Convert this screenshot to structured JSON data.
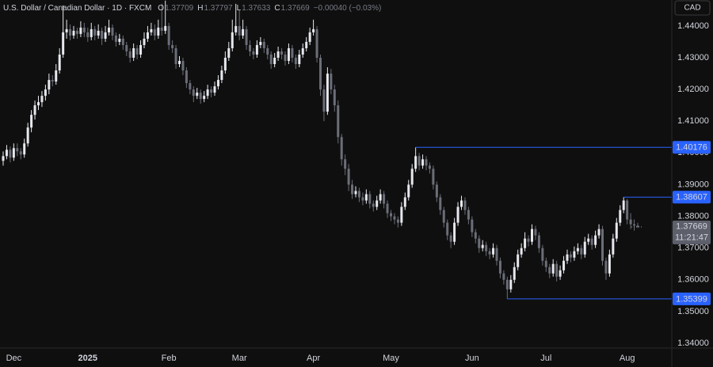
{
  "chart_data": {
    "type": "candlestick",
    "title": "U.S. Dollar / Canadian Dollar · 1D · FXCM",
    "ohlc_labels": [
      "O",
      "H",
      "L",
      "C"
    ],
    "change": "−0.00040 (−0.03%)",
    "currency": "CAD",
    "countdown": "11:21:47",
    "up_color": "#e6e8ee",
    "down_color": "#6b6e78",
    "level_color": "#2962ff",
    "price_tag_color": "#5d606b",
    "grid": false,
    "ylim": [
      1.3385,
      1.4482
    ],
    "yticks": [
      {
        "value": 1.44,
        "label": "1.44000"
      },
      {
        "value": 1.43,
        "label": "1.43000"
      },
      {
        "value": 1.42,
        "label": "1.42000"
      },
      {
        "value": 1.41,
        "label": "1.41000"
      },
      {
        "value": 1.4,
        "label": "1.40000"
      },
      {
        "value": 1.39,
        "label": "1.39000"
      },
      {
        "value": 1.38,
        "label": "1.38000"
      },
      {
        "value": 1.37,
        "label": "1.37000"
      },
      {
        "value": 1.36,
        "label": "1.36000"
      },
      {
        "value": 1.35,
        "label": "1.35000"
      },
      {
        "value": 1.34,
        "label": "1.34000"
      }
    ],
    "levels": [
      1.40176,
      1.38607,
      1.35399
    ],
    "categories": [
      null,
      null,
      null,
      "Dec",
      null,
      null,
      null,
      null,
      null,
      null,
      null,
      null,
      null,
      null,
      null,
      null,
      null,
      null,
      null,
      null,
      null,
      null,
      null,
      null,
      "2025",
      null,
      null,
      null,
      null,
      null,
      null,
      null,
      null,
      null,
      null,
      null,
      null,
      null,
      null,
      null,
      null,
      null,
      null,
      null,
      null,
      null,
      null,
      "Feb",
      null,
      null,
      null,
      null,
      null,
      null,
      null,
      null,
      null,
      null,
      null,
      null,
      null,
      null,
      null,
      null,
      null,
      null,
      null,
      "Mar",
      null,
      null,
      null,
      null,
      null,
      null,
      null,
      null,
      null,
      null,
      null,
      null,
      null,
      null,
      null,
      null,
      null,
      null,
      null,
      null,
      "Apr",
      null,
      null,
      null,
      null,
      null,
      null,
      null,
      null,
      null,
      null,
      null,
      null,
      null,
      null,
      null,
      null,
      null,
      null,
      null,
      null,
      null,
      "May",
      null,
      null,
      null,
      null,
      null,
      null,
      null,
      null,
      null,
      null,
      null,
      null,
      null,
      null,
      null,
      null,
      null,
      null,
      null,
      null,
      null,
      null,
      "Jun",
      null,
      null,
      null,
      null,
      null,
      null,
      null,
      null,
      null,
      null,
      null,
      null,
      null,
      null,
      null,
      null,
      null,
      null,
      null,
      null,
      "Jul",
      null,
      null,
      null,
      null,
      null,
      null,
      null,
      null,
      null,
      null,
      null,
      null,
      null,
      null,
      null,
      null,
      null,
      null,
      null,
      null,
      null,
      null,
      "Aug",
      null,
      null,
      null
    ],
    "ohlc": [
      [
        1.3975,
        1.4005,
        1.396,
        1.399
      ],
      [
        1.399,
        1.4025,
        1.398,
        1.401
      ],
      [
        1.401,
        1.402,
        1.397,
        1.3985
      ],
      [
        1.3985,
        1.403,
        1.3975,
        1.4015
      ],
      [
        1.4015,
        1.403,
        1.399,
        1.4005
      ],
      [
        1.4005,
        1.4015,
        1.398,
        1.3995
      ],
      [
        1.3995,
        1.4045,
        1.3985,
        1.403
      ],
      [
        1.403,
        1.4095,
        1.402,
        1.408
      ],
      [
        1.408,
        1.4135,
        1.4065,
        1.412
      ],
      [
        1.412,
        1.4165,
        1.4105,
        1.415
      ],
      [
        1.415,
        1.418,
        1.4135,
        1.416
      ],
      [
        1.416,
        1.4195,
        1.4145,
        1.418
      ],
      [
        1.418,
        1.4215,
        1.4165,
        1.42
      ],
      [
        1.42,
        1.425,
        1.4185,
        1.423
      ],
      [
        1.423,
        1.4245,
        1.421,
        1.4225
      ],
      [
        1.4225,
        1.428,
        1.4215,
        1.426
      ],
      [
        1.426,
        1.433,
        1.425,
        1.431
      ],
      [
        1.431,
        1.4465,
        1.43,
        1.438
      ],
      [
        1.438,
        1.442,
        1.436,
        1.439
      ],
      [
        1.439,
        1.4405,
        1.4355,
        1.437
      ],
      [
        1.437,
        1.44,
        1.436,
        1.4385
      ],
      [
        1.4385,
        1.4395,
        1.436,
        1.4375
      ],
      [
        1.4375,
        1.4415,
        1.4365,
        1.4395
      ],
      [
        1.4395,
        1.441,
        1.4365,
        1.438
      ],
      [
        1.438,
        1.4395,
        1.435,
        1.4365
      ],
      [
        1.4365,
        1.441,
        1.4355,
        1.439
      ],
      [
        1.439,
        1.44,
        1.4355,
        1.437
      ],
      [
        1.437,
        1.4405,
        1.436,
        1.4385
      ],
      [
        1.4385,
        1.4395,
        1.434,
        1.436
      ],
      [
        1.436,
        1.44,
        1.435,
        1.438
      ],
      [
        1.438,
        1.442,
        1.437,
        1.4395
      ],
      [
        1.4395,
        1.4405,
        1.4355,
        1.437
      ],
      [
        1.437,
        1.438,
        1.4335,
        1.435
      ],
      [
        1.435,
        1.4375,
        1.434,
        1.436
      ],
      [
        1.436,
        1.437,
        1.4325,
        1.434
      ],
      [
        1.434,
        1.435,
        1.4305,
        1.432
      ],
      [
        1.432,
        1.433,
        1.4285,
        1.43
      ],
      [
        1.43,
        1.4345,
        1.429,
        1.433
      ],
      [
        1.433,
        1.434,
        1.4295,
        1.431
      ],
      [
        1.431,
        1.4355,
        1.43,
        1.434
      ],
      [
        1.434,
        1.438,
        1.433,
        1.436
      ],
      [
        1.436,
        1.44,
        1.435,
        1.438
      ],
      [
        1.438,
        1.441,
        1.437,
        1.439
      ],
      [
        1.439,
        1.4405,
        1.4355,
        1.437
      ],
      [
        1.437,
        1.442,
        1.436,
        1.4395
      ],
      [
        1.4395,
        1.447,
        1.437,
        1.4385
      ],
      [
        1.4385,
        1.448,
        1.4375,
        1.44
      ],
      [
        1.44,
        1.441,
        1.4325,
        1.434
      ],
      [
        1.434,
        1.4355,
        1.4315,
        1.433
      ],
      [
        1.433,
        1.434,
        1.4265,
        1.428
      ],
      [
        1.428,
        1.4305,
        1.427,
        1.429
      ],
      [
        1.429,
        1.43,
        1.4245,
        1.426
      ],
      [
        1.426,
        1.427,
        1.4205,
        1.422
      ],
      [
        1.422,
        1.423,
        1.4185,
        1.42
      ],
      [
        1.42,
        1.421,
        1.416,
        1.418
      ],
      [
        1.418,
        1.4205,
        1.417,
        1.419
      ],
      [
        1.419,
        1.42,
        1.4155,
        1.417
      ],
      [
        1.417,
        1.4195,
        1.416,
        1.418
      ],
      [
        1.418,
        1.4215,
        1.417,
        1.42
      ],
      [
        1.42,
        1.421,
        1.4175,
        1.419
      ],
      [
        1.419,
        1.4225,
        1.418,
        1.421
      ],
      [
        1.421,
        1.4245,
        1.42,
        1.423
      ],
      [
        1.423,
        1.4275,
        1.422,
        1.426
      ],
      [
        1.426,
        1.432,
        1.425,
        1.43
      ],
      [
        1.43,
        1.435,
        1.429,
        1.433
      ],
      [
        1.433,
        1.442,
        1.432,
        1.438
      ],
      [
        1.438,
        1.447,
        1.437,
        1.44
      ],
      [
        1.44,
        1.445,
        1.4355,
        1.437
      ],
      [
        1.437,
        1.442,
        1.436,
        1.439
      ],
      [
        1.439,
        1.44,
        1.4325,
        1.434
      ],
      [
        1.434,
        1.4355,
        1.4305,
        1.432
      ],
      [
        1.432,
        1.433,
        1.4295,
        1.431
      ],
      [
        1.431,
        1.4355,
        1.43,
        1.434
      ],
      [
        1.434,
        1.4365,
        1.433,
        1.435
      ],
      [
        1.435,
        1.436,
        1.4315,
        1.433
      ],
      [
        1.433,
        1.434,
        1.4295,
        1.431
      ],
      [
        1.431,
        1.432,
        1.4265,
        1.428
      ],
      [
        1.428,
        1.4315,
        1.427,
        1.43
      ],
      [
        1.43,
        1.4335,
        1.429,
        1.432
      ],
      [
        1.432,
        1.433,
        1.4295,
        1.431
      ],
      [
        1.431,
        1.432,
        1.4275,
        1.429
      ],
      [
        1.429,
        1.4345,
        1.428,
        1.433
      ],
      [
        1.433,
        1.434,
        1.4285,
        1.43
      ],
      [
        1.43,
        1.431,
        1.4265,
        1.428
      ],
      [
        1.428,
        1.4325,
        1.427,
        1.431
      ],
      [
        1.431,
        1.4345,
        1.43,
        1.433
      ],
      [
        1.433,
        1.4365,
        1.432,
        1.435
      ],
      [
        1.435,
        1.4395,
        1.434,
        1.438
      ],
      [
        1.438,
        1.442,
        1.437,
        1.439
      ],
      [
        1.439,
        1.44,
        1.4285,
        1.43
      ],
      [
        1.43,
        1.431,
        1.418,
        1.42
      ],
      [
        1.42,
        1.4215,
        1.41,
        1.413
      ],
      [
        1.413,
        1.427,
        1.412,
        1.425
      ],
      [
        1.425,
        1.4265,
        1.4185,
        1.42
      ],
      [
        1.42,
        1.4215,
        1.413,
        1.415
      ],
      [
        1.415,
        1.4165,
        1.403,
        1.405
      ],
      [
        1.405,
        1.406,
        1.396,
        1.398
      ],
      [
        1.398,
        1.3995,
        1.393,
        1.395
      ],
      [
        1.395,
        1.3965,
        1.388,
        1.39
      ],
      [
        1.39,
        1.3915,
        1.3855,
        1.387
      ],
      [
        1.387,
        1.3895,
        1.386,
        1.388
      ],
      [
        1.388,
        1.389,
        1.3845,
        1.386
      ],
      [
        1.386,
        1.3875,
        1.3835,
        1.385
      ],
      [
        1.385,
        1.3885,
        1.384,
        1.387
      ],
      [
        1.387,
        1.388,
        1.3825,
        1.384
      ],
      [
        1.384,
        1.385,
        1.3815,
        1.383
      ],
      [
        1.383,
        1.3865,
        1.382,
        1.385
      ],
      [
        1.385,
        1.3885,
        1.384,
        1.387
      ],
      [
        1.387,
        1.388,
        1.3825,
        1.384
      ],
      [
        1.384,
        1.385,
        1.3795,
        1.381
      ],
      [
        1.381,
        1.382,
        1.3785,
        1.38
      ],
      [
        1.38,
        1.381,
        1.3775,
        1.379
      ],
      [
        1.379,
        1.38,
        1.3765,
        1.378
      ],
      [
        1.378,
        1.3845,
        1.377,
        1.383
      ],
      [
        1.383,
        1.3875,
        1.382,
        1.386
      ],
      [
        1.386,
        1.3915,
        1.385,
        1.39
      ],
      [
        1.39,
        1.3965,
        1.389,
        1.395
      ],
      [
        1.395,
        1.40176,
        1.394,
        1.399
      ],
      [
        1.399,
        1.4,
        1.3945,
        1.396
      ],
      [
        1.396,
        1.3995,
        1.395,
        1.398
      ],
      [
        1.398,
        1.399,
        1.3945,
        1.396
      ],
      [
        1.396,
        1.397,
        1.3935,
        1.395
      ],
      [
        1.395,
        1.396,
        1.3885,
        1.39
      ],
      [
        1.39,
        1.391,
        1.3845,
        1.386
      ],
      [
        1.386,
        1.387,
        1.3805,
        1.382
      ],
      [
        1.382,
        1.383,
        1.3765,
        1.378
      ],
      [
        1.378,
        1.379,
        1.3725,
        1.374
      ],
      [
        1.374,
        1.375,
        1.37,
        1.372
      ],
      [
        1.372,
        1.3795,
        1.371,
        1.378
      ],
      [
        1.378,
        1.3845,
        1.377,
        1.383
      ],
      [
        1.383,
        1.3865,
        1.382,
        1.385
      ],
      [
        1.385,
        1.386,
        1.3805,
        1.382
      ],
      [
        1.382,
        1.383,
        1.3775,
        1.379
      ],
      [
        1.379,
        1.38,
        1.3735,
        1.375
      ],
      [
        1.375,
        1.376,
        1.3715,
        1.373
      ],
      [
        1.373,
        1.374,
        1.3685,
        1.37
      ],
      [
        1.37,
        1.3725,
        1.369,
        1.371
      ],
      [
        1.371,
        1.372,
        1.3675,
        1.369
      ],
      [
        1.369,
        1.37,
        1.3665,
        1.368
      ],
      [
        1.368,
        1.3715,
        1.367,
        1.37
      ],
      [
        1.37,
        1.371,
        1.3645,
        1.366
      ],
      [
        1.366,
        1.367,
        1.3605,
        1.362
      ],
      [
        1.362,
        1.363,
        1.3585,
        1.36
      ],
      [
        1.36,
        1.361,
        1.35399,
        1.357
      ],
      [
        1.357,
        1.3615,
        1.356,
        1.36
      ],
      [
        1.36,
        1.3655,
        1.359,
        1.364
      ],
      [
        1.364,
        1.3695,
        1.363,
        1.368
      ],
      [
        1.368,
        1.3715,
        1.367,
        1.37
      ],
      [
        1.37,
        1.375,
        1.369,
        1.373
      ],
      [
        1.373,
        1.374,
        1.3705,
        1.372
      ],
      [
        1.372,
        1.3775,
        1.371,
        1.376
      ],
      [
        1.376,
        1.377,
        1.3725,
        1.374
      ],
      [
        1.374,
        1.375,
        1.3685,
        1.37
      ],
      [
        1.37,
        1.371,
        1.3645,
        1.366
      ],
      [
        1.366,
        1.367,
        1.3625,
        1.364
      ],
      [
        1.364,
        1.365,
        1.3605,
        1.362
      ],
      [
        1.362,
        1.3665,
        1.361,
        1.365
      ],
      [
        1.365,
        1.366,
        1.3595,
        1.361
      ],
      [
        1.361,
        1.3645,
        1.36,
        1.363
      ],
      [
        1.363,
        1.3675,
        1.362,
        1.366
      ],
      [
        1.366,
        1.3695,
        1.365,
        1.368
      ],
      [
        1.368,
        1.369,
        1.3655,
        1.367
      ],
      [
        1.367,
        1.3705,
        1.366,
        1.369
      ],
      [
        1.369,
        1.3715,
        1.368,
        1.37
      ],
      [
        1.37,
        1.371,
        1.3665,
        1.368
      ],
      [
        1.368,
        1.3735,
        1.367,
        1.372
      ],
      [
        1.372,
        1.3745,
        1.371,
        1.373
      ],
      [
        1.373,
        1.374,
        1.3695,
        1.371
      ],
      [
        1.371,
        1.3755,
        1.37,
        1.374
      ],
      [
        1.374,
        1.3775,
        1.373,
        1.376
      ],
      [
        1.376,
        1.377,
        1.3645,
        1.366
      ],
      [
        1.366,
        1.367,
        1.36,
        1.362
      ],
      [
        1.362,
        1.3695,
        1.361,
        1.368
      ],
      [
        1.368,
        1.3745,
        1.367,
        1.373
      ],
      [
        1.373,
        1.3795,
        1.372,
        1.378
      ],
      [
        1.378,
        1.3835,
        1.377,
        1.382
      ],
      [
        1.382,
        1.38607,
        1.381,
        1.385
      ],
      [
        1.385,
        1.3855,
        1.3775,
        1.379
      ],
      [
        1.379,
        1.381,
        1.376,
        1.3775
      ],
      [
        1.3775,
        1.379,
        1.3755,
        1.3771
      ],
      [
        1.37709,
        1.37797,
        1.37633,
        1.37669
      ]
    ]
  }
}
